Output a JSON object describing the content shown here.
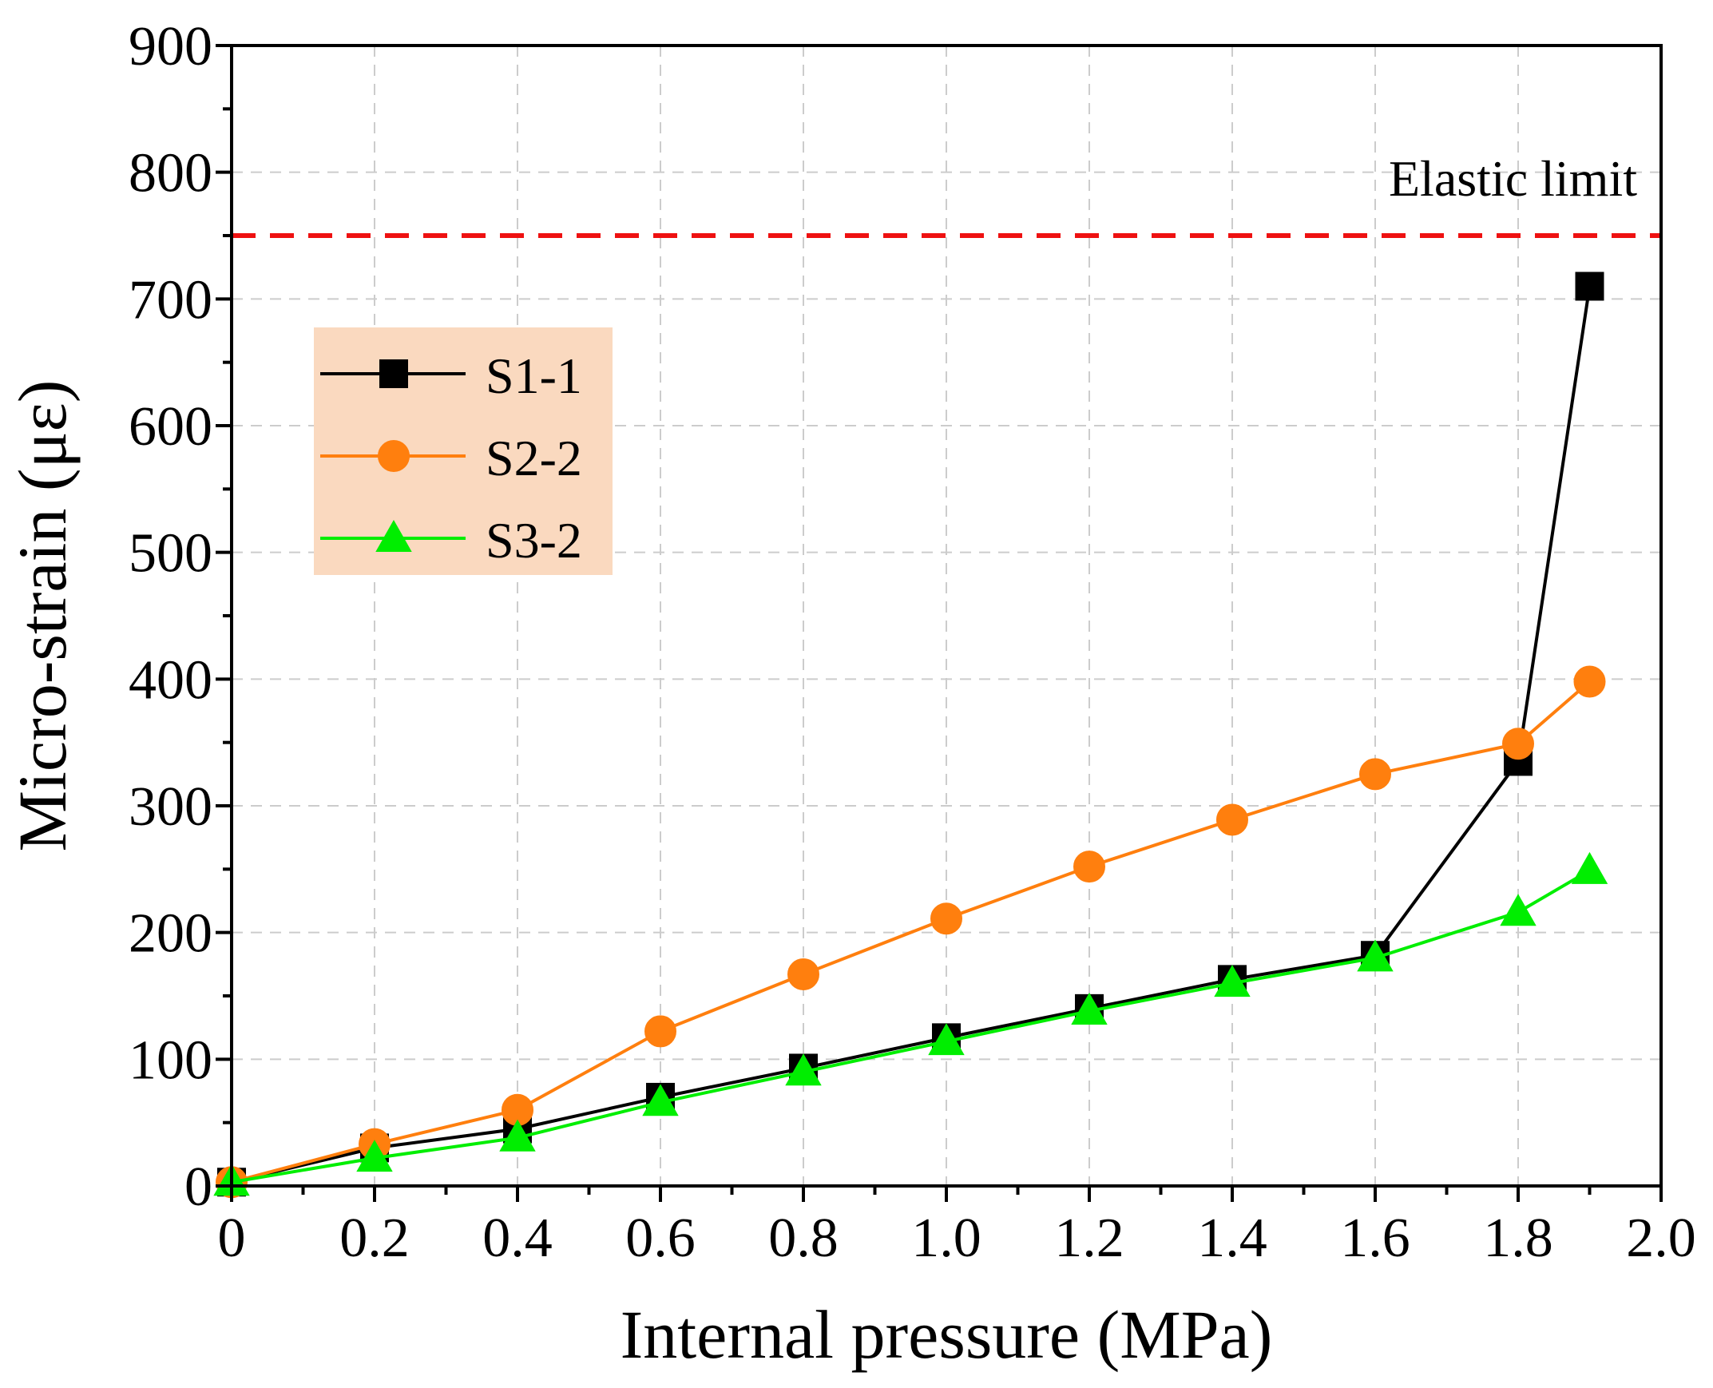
{
  "chart_data": {
    "type": "line",
    "title": "",
    "xlabel": "Internal pressure (MPa)",
    "ylabel": "Micro-strain (με)",
    "xlim": [
      0,
      2.0
    ],
    "ylim": [
      0,
      900
    ],
    "x_ticks": [
      0,
      0.2,
      0.4,
      0.6,
      0.8,
      1.0,
      1.2,
      1.4,
      1.6,
      1.8,
      2.0
    ],
    "x_tick_labels": [
      "0",
      "0.2",
      "0.4",
      "0.6",
      "0.8",
      "1.0",
      "1.2",
      "1.4",
      "1.6",
      "1.8",
      "2.0"
    ],
    "y_ticks": [
      0,
      100,
      200,
      300,
      400,
      500,
      600,
      700,
      800,
      900
    ],
    "y_tick_labels": [
      "0",
      "100",
      "200",
      "300",
      "400",
      "500",
      "600",
      "700",
      "800",
      "900"
    ],
    "grid": true,
    "legend_position": "upper-left",
    "series": [
      {
        "name": "S1-1",
        "color": "#000000",
        "marker": "square",
        "x": [
          0,
          0.2,
          0.4,
          0.6,
          0.8,
          1.0,
          1.2,
          1.4,
          1.6,
          1.8,
          1.9
        ],
        "y": [
          3,
          30,
          45,
          70,
          93,
          117,
          140,
          163,
          182,
          335,
          710
        ]
      },
      {
        "name": "S2-2",
        "color": "#ff7f0e",
        "marker": "circle",
        "x": [
          0,
          0.2,
          0.4,
          0.6,
          0.8,
          1.0,
          1.2,
          1.4,
          1.6,
          1.8,
          1.9
        ],
        "y": [
          3,
          33,
          60,
          122,
          167,
          211,
          252,
          289,
          325,
          349,
          398
        ]
      },
      {
        "name": "S3-2",
        "color": "#00ee00",
        "marker": "triangle",
        "x": [
          0,
          0.2,
          0.4,
          0.6,
          0.8,
          1.0,
          1.2,
          1.4,
          1.6,
          1.8,
          1.9
        ],
        "y": [
          3,
          22,
          38,
          66,
          90,
          114,
          138,
          160,
          180,
          216,
          249
        ]
      }
    ],
    "reference_line": {
      "label": "Elastic limit",
      "y": 750,
      "color": "#ee1111",
      "style": "dashed"
    },
    "legend_background": "#fad9bf"
  }
}
